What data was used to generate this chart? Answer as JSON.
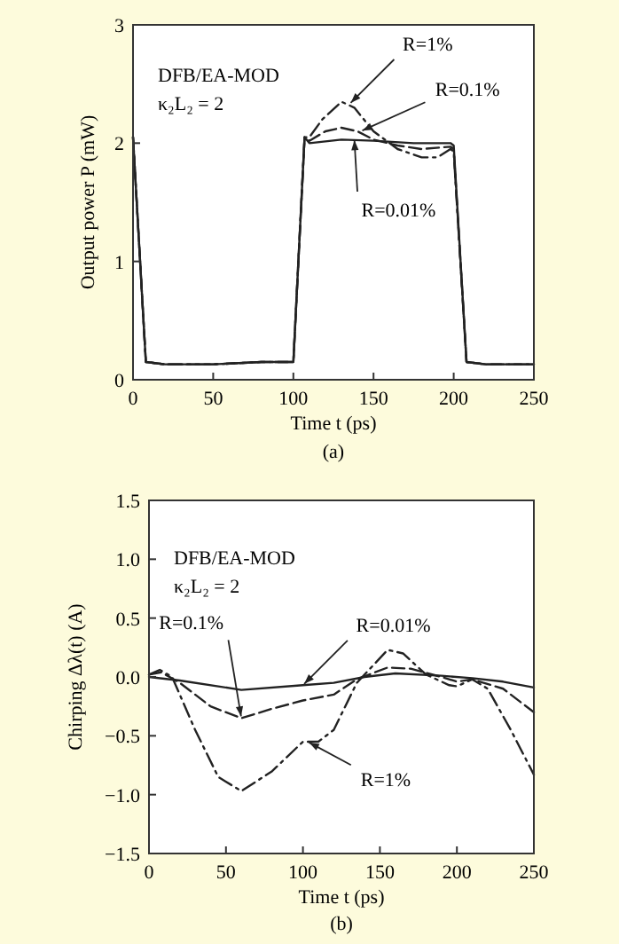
{
  "chart_data": [
    {
      "type": "line",
      "xlabel": "Time t (ps)",
      "ylabel": "Output power P (mW)",
      "xlim": [
        0,
        250
      ],
      "ylim": [
        0,
        3
      ],
      "xticks": [
        0,
        50,
        100,
        150,
        200,
        250
      ],
      "yticks": [
        0,
        1,
        2,
        3
      ],
      "grid": false,
      "series": [
        {
          "color": "#222222",
          "line_style": "solid",
          "x": [
            0,
            8,
            20,
            50,
            80,
            100,
            107,
            110,
            130,
            150,
            175,
            198,
            200,
            208,
            220,
            250
          ],
          "values": [
            2.05,
            0.15,
            0.13,
            0.13,
            0.15,
            0.15,
            2.05,
            2.0,
            2.03,
            2.02,
            2.0,
            2.0,
            1.98,
            0.15,
            0.13,
            0.13
          ]
        },
        {
          "color": "#222222",
          "line_style": "dashed",
          "x": [
            0,
            8,
            20,
            50,
            80,
            100,
            107,
            110,
            120,
            130,
            140,
            150,
            165,
            180,
            198,
            200,
            208,
            220,
            250
          ],
          "values": [
            2.05,
            0.15,
            0.13,
            0.13,
            0.15,
            0.15,
            2.05,
            2.02,
            2.1,
            2.13,
            2.1,
            2.03,
            1.98,
            1.95,
            1.97,
            1.95,
            0.15,
            0.13,
            0.13
          ]
        },
        {
          "color": "#222222",
          "line_style": "dashdot",
          "x": [
            0,
            8,
            20,
            50,
            80,
            100,
            107,
            110,
            118,
            130,
            138,
            150,
            165,
            180,
            190,
            198,
            200,
            208,
            220,
            250
          ],
          "values": [
            2.05,
            0.15,
            0.13,
            0.13,
            0.15,
            0.15,
            2.05,
            2.05,
            2.2,
            2.35,
            2.3,
            2.1,
            1.95,
            1.88,
            1.88,
            1.95,
            1.93,
            0.15,
            0.13,
            0.13
          ]
        }
      ],
      "annotations": [
        "DFB/EA-MOD",
        "κ₂L₂ = 2",
        {
          "text": "R=1%",
          "x": 135,
          "y": 2.33
        },
        {
          "text": "R=0.1%",
          "x": 142,
          "y": 2.1
        },
        {
          "text": "R=0.01%",
          "x": 138,
          "y": 2.04
        },
        "(a)"
      ]
    },
    {
      "type": "line",
      "xlabel": "Time t (ps)",
      "ylabel": "Chirping Δλ(t) (A)",
      "xlim": [
        0,
        250
      ],
      "ylim": [
        -1.5,
        1.5
      ],
      "xticks": [
        0,
        50,
        100,
        150,
        200,
        250
      ],
      "yticks": [
        {
          "value": -1.5,
          "label": "−1.5"
        },
        {
          "value": -1,
          "label": "−1.0"
        },
        {
          "value": -0.5,
          "label": "−0.5"
        },
        {
          "value": 0,
          "label": "0.0"
        },
        {
          "value": 0.5,
          "label": "0.5"
        },
        {
          "value": 1,
          "label": "1.0"
        },
        {
          "value": 1.5,
          "label": "1.5"
        }
      ],
      "grid": false,
      "series": [
        {
          "color": "#222222",
          "line_style": "solid",
          "x": [
            0,
            20,
            60,
            100,
            120,
            140,
            160,
            190,
            210,
            230,
            250
          ],
          "values": [
            0,
            -0.03,
            -0.11,
            -0.07,
            -0.05,
            0,
            0.03,
            0.01,
            -0.01,
            -0.04,
            -0.09
          ]
        },
        {
          "color": "#222222",
          "line_style": "dashed",
          "x": [
            0,
            8,
            20,
            40,
            60,
            80,
            100,
            120,
            135,
            155,
            170,
            190,
            200,
            210,
            230,
            250
          ],
          "values": [
            0.02,
            0.04,
            -0.05,
            -0.25,
            -0.35,
            -0.27,
            -0.2,
            -0.15,
            -0.02,
            0.08,
            0.07,
            0,
            -0.04,
            -0.02,
            -0.1,
            -0.3
          ]
        },
        {
          "color": "#222222",
          "line_style": "dashdot",
          "x": [
            0,
            7,
            15,
            30,
            45,
            60,
            80,
            100,
            110,
            120,
            135,
            155,
            165,
            180,
            195,
            200,
            210,
            220,
            235,
            250
          ],
          "values": [
            0.02,
            0.06,
            0,
            -0.45,
            -0.85,
            -0.97,
            -0.8,
            -0.55,
            -0.55,
            -0.45,
            -0.05,
            0.23,
            0.2,
            0.02,
            -0.07,
            -0.08,
            -0.02,
            -0.1,
            -0.45,
            -0.83
          ]
        }
      ],
      "annotations": [
        "DFB/EA-MOD",
        "κ₂L₂ = 2",
        {
          "text": "R=0.1%",
          "x": 60,
          "y": -0.35
        },
        {
          "text": "R=0.01%",
          "x": 100,
          "y": -0.07
        },
        {
          "text": "R=1%",
          "x": 103,
          "y": -0.55
        },
        "(b)"
      ]
    }
  ]
}
